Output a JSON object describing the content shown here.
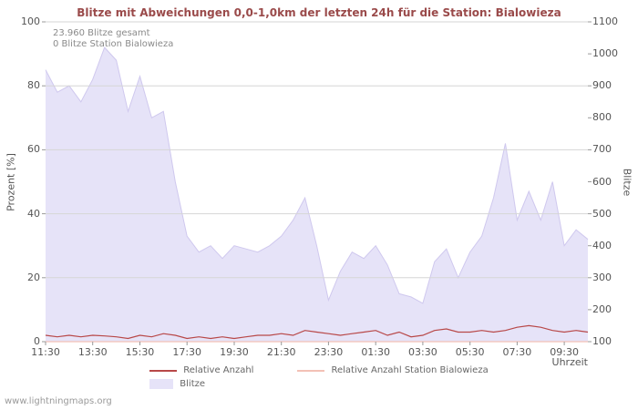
{
  "page": {
    "watermark": "www.lightningmaps.org"
  },
  "chart_data": {
    "type": "area",
    "title": "Blitze mit Abweichungen 0,0-1,0km der letzten 24h für die Station: Bialowieza",
    "annotations": [
      "23.960 Blitze gesamt",
      "0 Blitze Station Bialowieza"
    ],
    "xlabel": "Uhrzeit",
    "x_interval_minutes": 30,
    "x_start": "11:30",
    "x_tick_labels": [
      "11:30",
      "13:30",
      "15:30",
      "17:30",
      "19:30",
      "21:30",
      "23:30",
      "01:30",
      "03:30",
      "05:30",
      "07:30",
      "09:30"
    ],
    "x_tick_indices": [
      0,
      4,
      8,
      12,
      16,
      20,
      24,
      28,
      32,
      36,
      40,
      44
    ],
    "left_axis": {
      "label": "Prozent  [%]",
      "range": [
        0,
        100
      ],
      "ticks": [
        0,
        20,
        40,
        60,
        80,
        100
      ]
    },
    "right_axis": {
      "label": "Blitze",
      "range": [
        100,
        1100
      ],
      "ticks": [
        100,
        200,
        300,
        400,
        500,
        600,
        700,
        800,
        900,
        1000,
        1100
      ]
    },
    "grid": "horizontal",
    "legend_position": "bottom",
    "colors": {
      "area": "#e6e3f8",
      "area_edge": "#cfc8ee",
      "line_total": "#b84848",
      "line_station": "#f3c1b6",
      "gridline": "#d6d6d6"
    },
    "series": [
      {
        "name": "Blitze",
        "type": "area",
        "axis": "right",
        "color": "#e6e3f8",
        "edge": "#cfc8ee",
        "values": [
          950,
          880,
          900,
          850,
          920,
          1020,
          980,
          820,
          930,
          800,
          820,
          600,
          430,
          380,
          400,
          360,
          400,
          390,
          380,
          400,
          430,
          480,
          550,
          400,
          230,
          320,
          380,
          360,
          400,
          340,
          250,
          240,
          220,
          350,
          390,
          300,
          380,
          430,
          550,
          720,
          480,
          570,
          480,
          600,
          400,
          450,
          420
        ]
      },
      {
        "name": "Relative Anzahl",
        "type": "line",
        "axis": "left",
        "color": "#b84848",
        "values": [
          2,
          1.5,
          2,
          1.5,
          2,
          1.8,
          1.5,
          1,
          2,
          1.5,
          2.5,
          2,
          1,
          1.5,
          1,
          1.5,
          1,
          1.5,
          2,
          2,
          2.5,
          2,
          3.5,
          3,
          2.5,
          2,
          2.5,
          3,
          3.5,
          2,
          3,
          1.5,
          2,
          3.5,
          4,
          3,
          3,
          3.5,
          3,
          3.5,
          4.5,
          5,
          4.5,
          3.5,
          3,
          3.5,
          3
        ]
      },
      {
        "name": "Relative Anzahl Station Bialowieza",
        "type": "line",
        "axis": "left",
        "color": "#f3c1b6",
        "values": [
          0,
          0,
          0,
          0,
          0,
          0,
          0,
          0,
          0,
          0,
          0,
          0,
          0,
          0,
          0,
          0,
          0,
          0,
          0,
          0,
          0,
          0,
          0,
          0,
          0,
          0,
          0,
          0,
          0,
          0,
          0,
          0,
          0,
          0,
          0,
          0,
          0,
          0,
          0,
          0,
          0,
          0,
          0,
          0,
          0,
          0,
          0
        ]
      }
    ]
  }
}
